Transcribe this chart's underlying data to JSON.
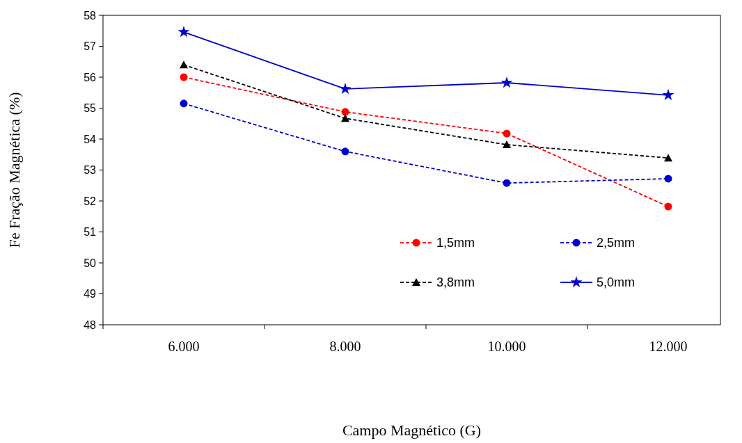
{
  "chart_data": {
    "type": "line",
    "xlabel": "Campo Magnético (G)",
    "ylabel": "Fe  Fração  Magnética (%)",
    "categories": [
      "6.000",
      "8.000",
      "10.000",
      "12.000"
    ],
    "series": [
      {
        "name": "1,5mm",
        "color": "#ff0000",
        "values": [
          56.0,
          54.88,
          54.18,
          51.82
        ],
        "marker": "circle",
        "line_style": "dashed"
      },
      {
        "name": "2,5mm",
        "color": "#0000cc",
        "values": [
          55.15,
          53.6,
          52.58,
          52.72
        ],
        "marker": "circle",
        "line_style": "dashed"
      },
      {
        "name": "3,8mm",
        "color": "#000000",
        "values": [
          56.4,
          54.67,
          53.82,
          53.39
        ],
        "marker": "triangle",
        "line_style": "dashed"
      },
      {
        "name": "5,0mm",
        "color": "#0000cc",
        "values": [
          57.46,
          55.62,
          55.82,
          55.42
        ],
        "marker": "star",
        "line_style": "solid"
      }
    ],
    "ylim": [
      48,
      58
    ],
    "yticks": [
      48,
      49,
      50,
      51,
      52,
      53,
      54,
      55,
      56,
      57,
      58
    ],
    "grid": false,
    "legend": "bottom right"
  }
}
